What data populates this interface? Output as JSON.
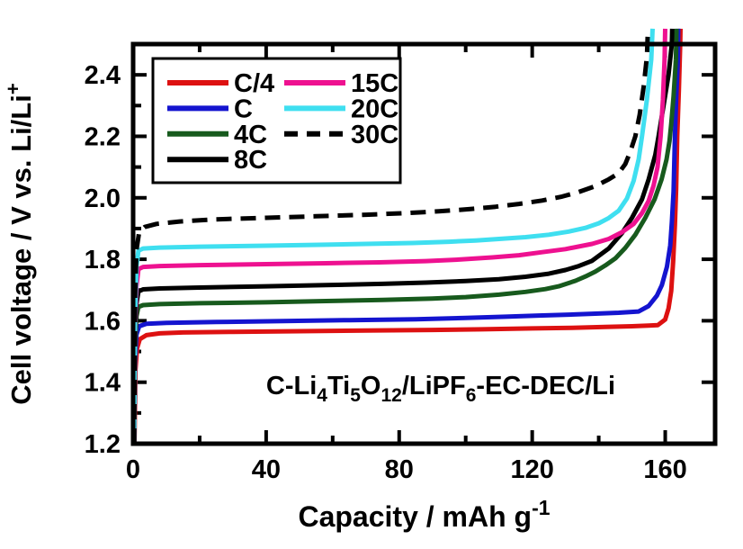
{
  "figure": {
    "background": "#ffffff",
    "description": "Rate-capability charge curves of a C-Li4Ti5O12 / Li half cell"
  },
  "chart_data": {
    "type": "line",
    "title": "",
    "xlabel_parts": [
      {
        "t": "Capacity / mAh g"
      },
      {
        "t": "-1",
        "style": "sup"
      }
    ],
    "ylabel_parts": [
      {
        "t": "Cell voltage / V vs. Li/Li"
      },
      {
        "t": "+",
        "style": "sup"
      }
    ],
    "annotation_parts": [
      {
        "t": "C-Li"
      },
      {
        "t": "4",
        "style": "sub"
      },
      {
        "t": "Ti"
      },
      {
        "t": "5",
        "style": "sub"
      },
      {
        "t": "O"
      },
      {
        "t": "12",
        "style": "sub"
      },
      {
        "t": "/LiPF"
      },
      {
        "t": "6",
        "style": "sub"
      },
      {
        "t": "-EC-DEC/Li"
      }
    ],
    "xlim": [
      0,
      175
    ],
    "ylim": [
      1.2,
      2.5
    ],
    "grid": false,
    "x_major_ticks": [
      0,
      40,
      80,
      120,
      160
    ],
    "x_minor_ticks": [
      20,
      60,
      100,
      140
    ],
    "x_tick_labels": [
      "0",
      "40",
      "80",
      "120",
      "160"
    ],
    "y_major_ticks": [
      1.2,
      1.4,
      1.6,
      1.8,
      2.0,
      2.2,
      2.4
    ],
    "y_minor_ticks": [
      1.3,
      1.5,
      1.7,
      1.9,
      2.1,
      2.3,
      2.5
    ],
    "y_tick_labels": [
      "1.2",
      "1.4",
      "1.6",
      "1.8",
      "2.0",
      "2.2",
      "2.4"
    ],
    "legend": {
      "position": "top-left",
      "columns": 2,
      "entries": [
        {
          "label": "C/4",
          "series": "C/4",
          "col": 0,
          "row": 0
        },
        {
          "label": "C",
          "series": "C",
          "col": 0,
          "row": 1
        },
        {
          "label": "4C",
          "series": "4C",
          "col": 0,
          "row": 2
        },
        {
          "label": "8C",
          "series": "8C",
          "col": 0,
          "row": 3
        },
        {
          "label": "15C",
          "series": "15C",
          "col": 1,
          "row": 0
        },
        {
          "label": "20C",
          "series": "20C",
          "col": 1,
          "row": 1
        },
        {
          "label": "30C",
          "series": "30C",
          "col": 1,
          "row": 2
        }
      ]
    },
    "series": [
      {
        "name": "C/4",
        "color": "#dd1111",
        "dashed": false,
        "points": [
          [
            0.4,
            1.2
          ],
          [
            0.7,
            1.44
          ],
          [
            1.2,
            1.51
          ],
          [
            2,
            1.54
          ],
          [
            4,
            1.553
          ],
          [
            8,
            1.559
          ],
          [
            15,
            1.562
          ],
          [
            30,
            1.564
          ],
          [
            50,
            1.566
          ],
          [
            70,
            1.568
          ],
          [
            90,
            1.57
          ],
          [
            105,
            1.572
          ],
          [
            120,
            1.575
          ],
          [
            132,
            1.577
          ],
          [
            142,
            1.58
          ],
          [
            150,
            1.582
          ],
          [
            155,
            1.584
          ],
          [
            157.8,
            1.586
          ],
          [
            160,
            1.604
          ],
          [
            161,
            1.64
          ],
          [
            161.8,
            1.697
          ],
          [
            162.4,
            1.795
          ],
          [
            162.9,
            1.91
          ],
          [
            163.3,
            2.03
          ],
          [
            163.6,
            2.2
          ],
          [
            164.1,
            2.35
          ],
          [
            164.5,
            2.5
          ],
          [
            164.6,
            2.55
          ]
        ]
      },
      {
        "name": "C",
        "color": "#1414cf",
        "dashed": false,
        "points": [
          [
            0.3,
            1.2
          ],
          [
            0.6,
            1.47
          ],
          [
            1,
            1.555
          ],
          [
            1.8,
            1.582
          ],
          [
            4,
            1.59
          ],
          [
            10,
            1.593
          ],
          [
            25,
            1.596
          ],
          [
            45,
            1.599
          ],
          [
            65,
            1.602
          ],
          [
            85,
            1.605
          ],
          [
            100,
            1.609
          ],
          [
            112,
            1.613
          ],
          [
            122,
            1.617
          ],
          [
            131,
            1.62
          ],
          [
            139,
            1.623
          ],
          [
            146,
            1.626
          ],
          [
            152,
            1.63
          ],
          [
            155,
            1.648
          ],
          [
            157.5,
            1.682
          ],
          [
            159,
            1.716
          ],
          [
            160.5,
            1.775
          ],
          [
            161.5,
            1.845
          ],
          [
            162,
            1.92
          ],
          [
            162.5,
            2.02
          ],
          [
            162.9,
            2.2
          ],
          [
            163.3,
            2.32
          ],
          [
            163.8,
            2.45
          ],
          [
            163.9,
            2.55
          ]
        ]
      },
      {
        "name": "4C",
        "color": "#175a1d",
        "dashed": false,
        "points": [
          [
            0.3,
            1.2
          ],
          [
            0.6,
            1.52
          ],
          [
            1,
            1.615
          ],
          [
            1.6,
            1.645
          ],
          [
            3,
            1.651
          ],
          [
            8,
            1.654
          ],
          [
            20,
            1.657
          ],
          [
            40,
            1.66
          ],
          [
            58,
            1.664
          ],
          [
            75,
            1.668
          ],
          [
            90,
            1.672
          ],
          [
            100,
            1.677
          ],
          [
            110,
            1.685
          ],
          [
            118,
            1.694
          ],
          [
            124,
            1.703
          ],
          [
            128,
            1.712
          ],
          [
            133,
            1.73
          ],
          [
            136,
            1.744
          ],
          [
            139,
            1.76
          ],
          [
            142,
            1.78
          ],
          [
            145,
            1.803
          ],
          [
            148,
            1.837
          ],
          [
            151,
            1.88
          ],
          [
            154,
            1.935
          ],
          [
            156.8,
            1.995
          ],
          [
            158.9,
            2.06
          ],
          [
            160.4,
            2.125
          ],
          [
            161.3,
            2.185
          ],
          [
            161.8,
            2.24
          ],
          [
            162.5,
            2.33
          ],
          [
            163.2,
            2.45
          ],
          [
            163.4,
            2.55
          ]
        ]
      },
      {
        "name": "8C",
        "color": "#000000",
        "dashed": false,
        "points": [
          [
            0.3,
            1.2
          ],
          [
            0.6,
            1.55
          ],
          [
            1,
            1.655
          ],
          [
            1.6,
            1.695
          ],
          [
            3,
            1.702
          ],
          [
            8,
            1.705
          ],
          [
            20,
            1.708
          ],
          [
            40,
            1.712
          ],
          [
            58,
            1.716
          ],
          [
            75,
            1.72
          ],
          [
            88,
            1.724
          ],
          [
            100,
            1.729
          ],
          [
            110,
            1.735
          ],
          [
            118,
            1.743
          ],
          [
            125,
            1.753
          ],
          [
            130,
            1.765
          ],
          [
            134,
            1.778
          ],
          [
            138,
            1.795
          ],
          [
            143,
            1.835
          ],
          [
            147,
            1.885
          ],
          [
            150,
            1.935
          ],
          [
            153,
            1.995
          ],
          [
            155,
            2.06
          ],
          [
            157,
            2.14
          ],
          [
            158,
            2.2
          ],
          [
            159.5,
            2.3
          ],
          [
            161,
            2.4
          ],
          [
            162,
            2.5
          ],
          [
            162.1,
            2.55
          ]
        ]
      },
      {
        "name": "15C",
        "color": "#ee1190",
        "dashed": false,
        "points": [
          [
            0.3,
            1.2
          ],
          [
            0.6,
            1.58
          ],
          [
            1,
            1.71
          ],
          [
            1.6,
            1.768
          ],
          [
            3,
            1.775
          ],
          [
            8,
            1.778
          ],
          [
            20,
            1.781
          ],
          [
            40,
            1.784
          ],
          [
            58,
            1.787
          ],
          [
            74,
            1.79
          ],
          [
            88,
            1.794
          ],
          [
            98,
            1.799
          ],
          [
            108,
            1.806
          ],
          [
            116,
            1.813
          ],
          [
            123,
            1.823
          ],
          [
            130,
            1.833
          ],
          [
            138,
            1.85
          ],
          [
            143,
            1.866
          ],
          [
            147,
            1.888
          ],
          [
            150.5,
            1.915
          ],
          [
            153,
            1.95
          ],
          [
            155,
            1.99
          ],
          [
            156.5,
            2.04
          ],
          [
            157.7,
            2.1
          ],
          [
            158.6,
            2.2
          ],
          [
            159.3,
            2.32
          ],
          [
            159.8,
            2.45
          ],
          [
            160,
            2.55
          ]
        ]
      },
      {
        "name": "20C",
        "color": "#3fdff0",
        "dashed": false,
        "points": [
          [
            0.3,
            1.2
          ],
          [
            0.6,
            1.62
          ],
          [
            1,
            1.775
          ],
          [
            1.6,
            1.828
          ],
          [
            3,
            1.835
          ],
          [
            8,
            1.838
          ],
          [
            20,
            1.841
          ],
          [
            40,
            1.844
          ],
          [
            56,
            1.847
          ],
          [
            70,
            1.85
          ],
          [
            84,
            1.853
          ],
          [
            95,
            1.857
          ],
          [
            103,
            1.861
          ],
          [
            110,
            1.866
          ],
          [
            118,
            1.872
          ],
          [
            125,
            1.88
          ],
          [
            131,
            1.89
          ],
          [
            136,
            1.902
          ],
          [
            140,
            1.917
          ],
          [
            143,
            1.934
          ],
          [
            146,
            1.958
          ],
          [
            148.5,
            1.998
          ],
          [
            150.5,
            2.055
          ],
          [
            152,
            2.125
          ],
          [
            153,
            2.2
          ],
          [
            154.5,
            2.32
          ],
          [
            155.8,
            2.45
          ],
          [
            156.2,
            2.55
          ]
        ]
      },
      {
        "name": "30C",
        "color": "#000000",
        "dashed": true,
        "points": [
          [
            0.3,
            1.2
          ],
          [
            0.6,
            1.68
          ],
          [
            1,
            1.83
          ],
          [
            1.8,
            1.888
          ],
          [
            3.5,
            1.905
          ],
          [
            7,
            1.915
          ],
          [
            14,
            1.923
          ],
          [
            25,
            1.93
          ],
          [
            40,
            1.935
          ],
          [
            55,
            1.94
          ],
          [
            70,
            1.945
          ],
          [
            82,
            1.95
          ],
          [
            92,
            1.956
          ],
          [
            101,
            1.963
          ],
          [
            109,
            1.971
          ],
          [
            116,
            1.98
          ],
          [
            123,
            1.991
          ],
          [
            129,
            2.004
          ],
          [
            134,
            2.019
          ],
          [
            139,
            2.038
          ],
          [
            143,
            2.06
          ],
          [
            146,
            2.08
          ],
          [
            148,
            2.11
          ],
          [
            149.5,
            2.15
          ],
          [
            151,
            2.2
          ],
          [
            152.3,
            2.27
          ],
          [
            153.5,
            2.36
          ],
          [
            154.5,
            2.46
          ],
          [
            154.8,
            2.55
          ]
        ]
      }
    ]
  }
}
